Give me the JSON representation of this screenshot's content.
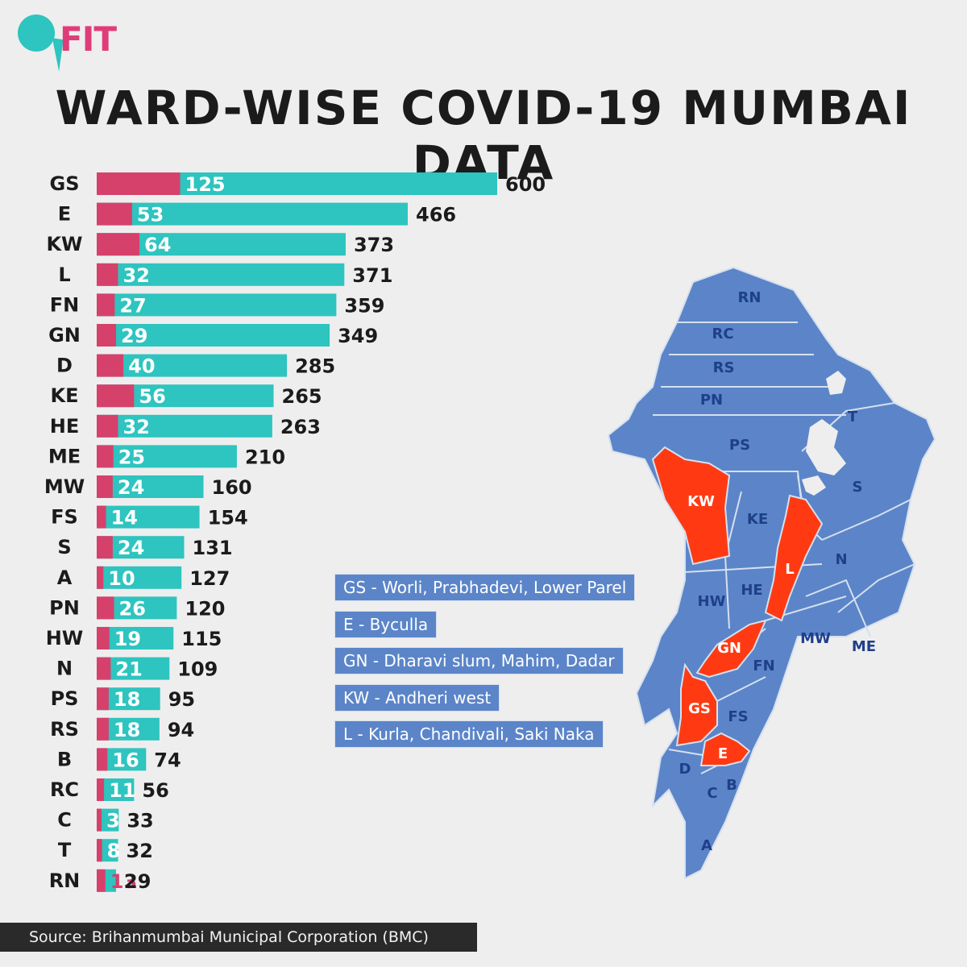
{
  "brand": "FIT",
  "title": "WARD-WISE COVID-19 MUMBAI DATA",
  "chart_data": {
    "type": "bar",
    "orientation": "horizontal",
    "stacked": false,
    "categories": [
      "GS",
      "E",
      "KW",
      "L",
      "FN",
      "GN",
      "D",
      "KE",
      "HE",
      "ME",
      "MW",
      "FS",
      "S",
      "A",
      "PN",
      "HW",
      "N",
      "PS",
      "RS",
      "B",
      "RC",
      "C",
      "T",
      "RN"
    ],
    "series": [
      {
        "values": [
          600,
          466,
          373,
          371,
          359,
          349,
          285,
          265,
          263,
          210,
          160,
          154,
          131,
          127,
          120,
          115,
          109,
          95,
          94,
          74,
          56,
          33,
          32,
          29
        ]
      },
      {
        "values": [
          125,
          53,
          64,
          32,
          27,
          29,
          40,
          56,
          32,
          25,
          24,
          14,
          24,
          10,
          26,
          19,
          21,
          18,
          18,
          16,
          11,
          3,
          8,
          13
        ]
      }
    ],
    "colors": {
      "total": "#2ec4bf",
      "sub": "#d6416c",
      "value_text": "#ffffff",
      "last_value_text": "#d6416c",
      "label_text": "#1b1b1b"
    },
    "grid": false,
    "title": "WARD-WISE COVID-19 MUMBAI DATA",
    "xlabel": "",
    "ylabel": ""
  },
  "map": {
    "highlight_color": "#ff3a12",
    "base_color": "#5b85c8",
    "label_color_base": "#1f3f8a",
    "label_color_highlight": "#ffffff",
    "wards": [
      {
        "label": "RN",
        "hl": false
      },
      {
        "label": "RC",
        "hl": false
      },
      {
        "label": "RS",
        "hl": false
      },
      {
        "label": "PN",
        "hl": false
      },
      {
        "label": "T",
        "hl": false
      },
      {
        "label": "PS",
        "hl": false
      },
      {
        "label": "S",
        "hl": false
      },
      {
        "label": "KW",
        "hl": true
      },
      {
        "label": "KE",
        "hl": false
      },
      {
        "label": "L",
        "hl": true
      },
      {
        "label": "N",
        "hl": false
      },
      {
        "label": "HW",
        "hl": false
      },
      {
        "label": "HE",
        "hl": false
      },
      {
        "label": "GN",
        "hl": true
      },
      {
        "label": "MW",
        "hl": false
      },
      {
        "label": "ME",
        "hl": false
      },
      {
        "label": "FN",
        "hl": false
      },
      {
        "label": "GS",
        "hl": true
      },
      {
        "label": "FS",
        "hl": false
      },
      {
        "label": "E",
        "hl": true
      },
      {
        "label": "D",
        "hl": false
      },
      {
        "label": "B",
        "hl": false
      },
      {
        "label": "C",
        "hl": false
      },
      {
        "label": "A",
        "hl": false
      }
    ]
  },
  "legend": [
    "GS - Worli, Prabhadevi, Lower Parel",
    "E - Byculla",
    "GN - Dharavi slum, Mahim, Dadar",
    "KW - Andheri west",
    "L -  Kurla, Chandivali, Saki Naka"
  ],
  "source": "Source: Brihanmumbai Municipal Corporation (BMC)"
}
